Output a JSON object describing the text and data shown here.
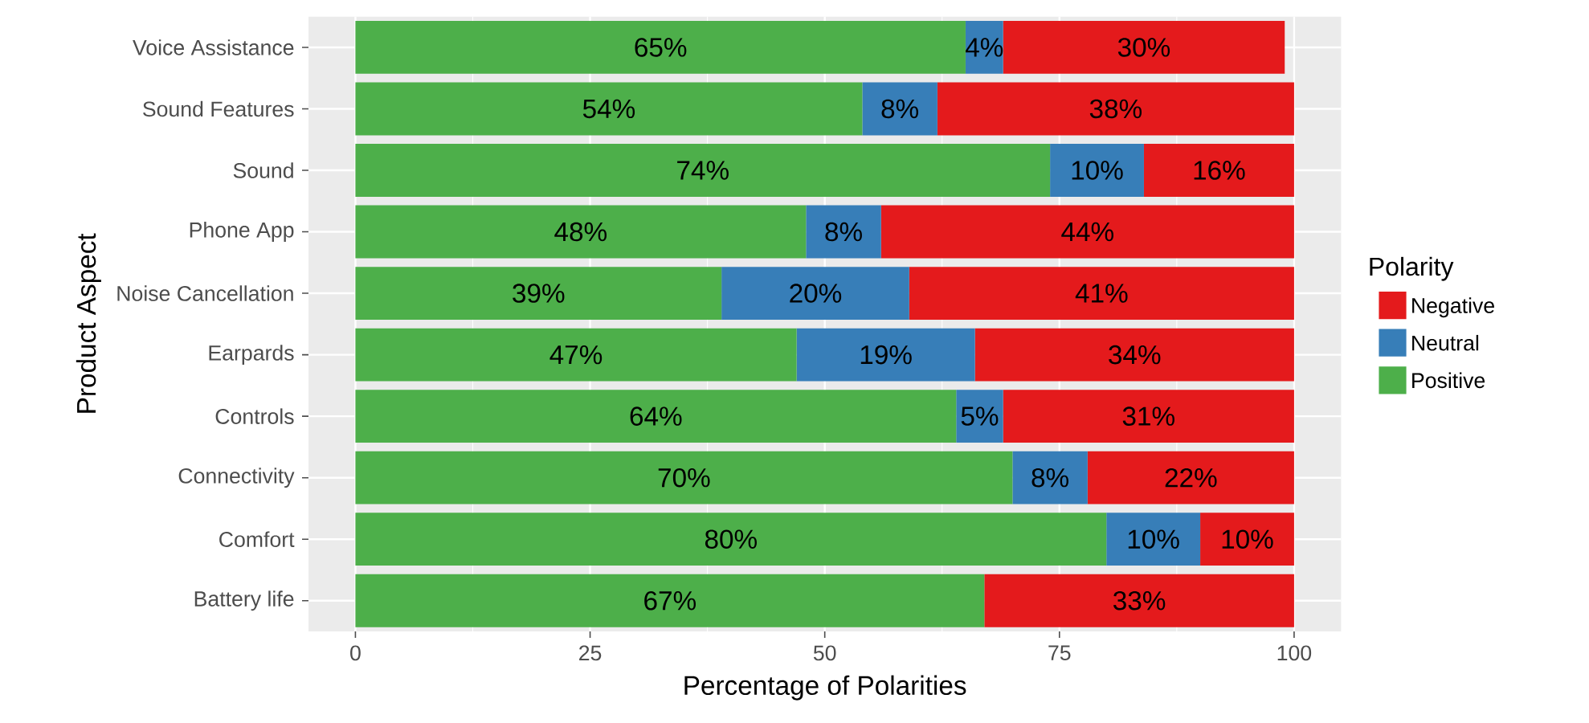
{
  "chart_data": {
    "type": "bar",
    "orientation": "horizontal",
    "stacked": true,
    "xlabel": "Percentage of Polarities",
    "ylabel": "Product Aspect",
    "legend_title": "Polarity",
    "categories": [
      "Voice Assistance",
      "Sound Features",
      "Sound",
      "Phone App",
      "Noise Cancellation",
      "Earpards",
      "Controls",
      "Connectivity",
      "Comfort",
      "Battery life"
    ],
    "series": [
      {
        "name": "Positive",
        "color": "#4daf4a",
        "values": [
          65,
          54,
          74,
          48,
          39,
          47,
          64,
          70,
          80,
          67
        ],
        "value_labels": [
          "65%",
          "54%",
          "74%",
          "48%",
          "39%",
          "47%",
          "64%",
          "70%",
          "80%",
          "67%"
        ]
      },
      {
        "name": "Neutral",
        "color": "#377eb8",
        "values": [
          4,
          8,
          10,
          8,
          20,
          19,
          5,
          8,
          10,
          null
        ],
        "value_labels": [
          "4%",
          "8%",
          "10%",
          "8%",
          "20%",
          "19%",
          "5%",
          "8%",
          "10%",
          null
        ]
      },
      {
        "name": "Negative",
        "color": "#e41a1c",
        "values": [
          30,
          38,
          16,
          44,
          41,
          34,
          31,
          22,
          10,
          33
        ],
        "value_labels": [
          "30%",
          "38%",
          "16%",
          "44%",
          "41%",
          "34%",
          "31%",
          "22%",
          "10%",
          "33%"
        ]
      }
    ],
    "xlim": [
      -5,
      105
    ],
    "xticks": [
      0,
      25,
      50,
      75,
      100
    ],
    "grid": true,
    "legend": "right"
  }
}
